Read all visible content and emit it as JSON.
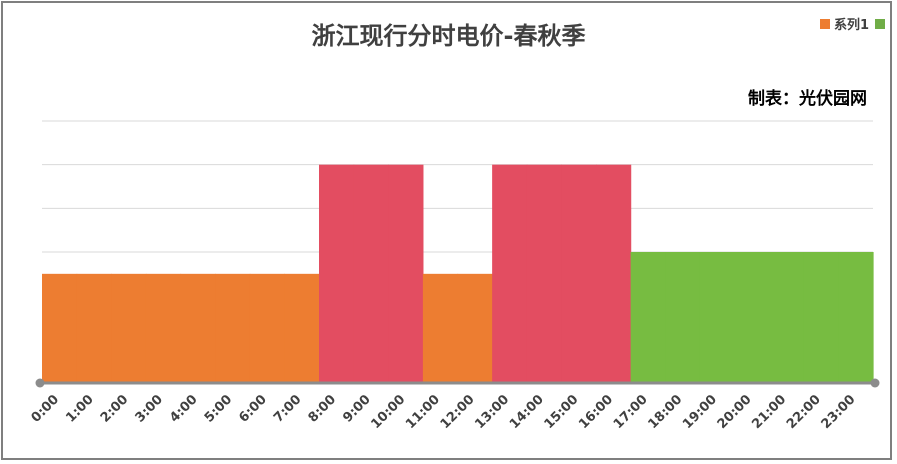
{
  "chart_data": {
    "type": "bar",
    "title": "浙江现行分时电价-春秋季",
    "subtitle": "制表：光伏园网",
    "legend": {
      "label": "系列1",
      "placement": "top-right",
      "colors": [
        "#ed7d31",
        "#70ad47"
      ]
    },
    "categories": [
      "0:00",
      "1:00",
      "2:00",
      "3:00",
      "4:00",
      "5:00",
      "6:00",
      "7:00",
      "8:00",
      "9:00",
      "10:00",
      "11:00",
      "12:00",
      "13:00",
      "14:00",
      "15:00",
      "16:00",
      "17:00",
      "18:00",
      "19:00",
      "20:00",
      "21:00",
      "22:00",
      "23:00"
    ],
    "series": [
      {
        "name": "系列1",
        "values": [
          1.25,
          1.25,
          1.25,
          1.25,
          1.25,
          1.25,
          1.25,
          1.25,
          2.5,
          2.5,
          2.5,
          1.25,
          1.25,
          2.5,
          2.5,
          2.5,
          2.5,
          1.5,
          1.5,
          1.5,
          1.5,
          1.5,
          1.5,
          1.5
        ],
        "colors": [
          "#ed7d31",
          "#ed7d31",
          "#ed7d31",
          "#ed7d31",
          "#ed7d31",
          "#ed7d31",
          "#ed7d31",
          "#ed7d31",
          "#e34d61",
          "#e34d61",
          "#e34d61",
          "#ed7d31",
          "#ed7d31",
          "#e34d61",
          "#e34d61",
          "#e34d61",
          "#e34d61",
          "#77bc41",
          "#77bc41",
          "#77bc41",
          "#77bc41",
          "#77bc41",
          "#77bc41",
          "#77bc41"
        ]
      }
    ],
    "ylim": [
      0,
      3
    ],
    "y_gridlines": [
      0.5,
      1,
      1.5,
      2,
      2.5,
      3
    ],
    "grid": true,
    "y_tick_labels_shown": false,
    "gridline_color": "#d9d9d9",
    "axis_color": "#8c8c8c"
  }
}
